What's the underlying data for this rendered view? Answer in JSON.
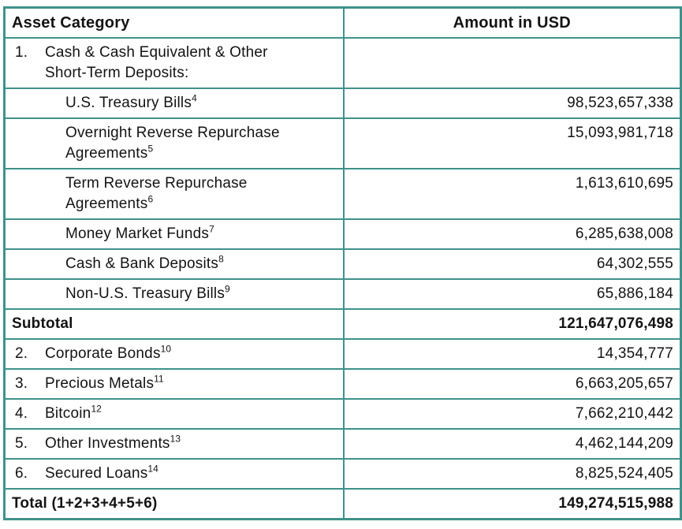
{
  "colors": {
    "border": "#3f928b",
    "text": "#131313",
    "background": "#ffffff"
  },
  "table": {
    "headers": {
      "asset_category": "Asset Category",
      "amount_usd": "Amount in USD"
    },
    "rows": [
      {
        "num": "1.",
        "label": "Cash & Cash Equivalent & Other\nShort-Term Deposits:",
        "footnote": "",
        "amount": ""
      },
      {
        "num": "",
        "label": "U.S. Treasury Bills",
        "footnote": "4",
        "amount": "98,523,657,338"
      },
      {
        "num": "",
        "label": "Overnight Reverse Repurchase\nAgreements",
        "footnote": "5",
        "amount": "15,093,981,718"
      },
      {
        "num": "",
        "label": "Term Reverse Repurchase\nAgreements",
        "footnote": "6",
        "amount": "1,613,610,695"
      },
      {
        "num": "",
        "label": "Money Market Funds",
        "footnote": "7",
        "amount": "6,285,638,008"
      },
      {
        "num": "",
        "label": "Cash & Bank Deposits",
        "footnote": "8",
        "amount": "64,302,555"
      },
      {
        "num": "",
        "label": "Non-U.S. Treasury Bills",
        "footnote": "9",
        "amount": "65,886,184"
      },
      {
        "num": "",
        "label": "Subtotal",
        "footnote": "",
        "amount": "121,647,076,498"
      },
      {
        "num": "2.",
        "label": "Corporate Bonds",
        "footnote": "10",
        "amount": "14,354,777"
      },
      {
        "num": "3.",
        "label": "Precious Metals",
        "footnote": "11",
        "amount": "6,663,205,657"
      },
      {
        "num": "4.",
        "label": "Bitcoin",
        "footnote": "12",
        "amount": "7,662,210,442"
      },
      {
        "num": "5.",
        "label": "Other Investments",
        "footnote": "13",
        "amount": "4,462,144,209"
      },
      {
        "num": "6.",
        "label": "Secured Loans",
        "footnote": "14",
        "amount": "8,825,524,405"
      },
      {
        "num": "",
        "label": "Total (1+2+3+4+5+6)",
        "footnote": "",
        "amount": "149,274,515,988"
      }
    ]
  }
}
